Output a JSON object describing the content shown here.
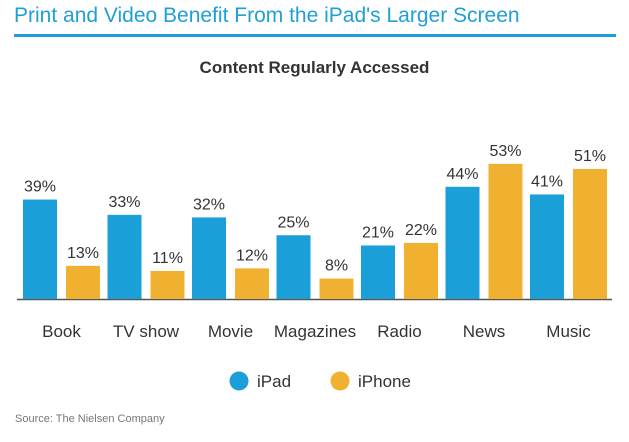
{
  "header": {
    "title": "Print and Video Benefit From the iPad's Larger Screen"
  },
  "footer": {
    "source": "Source: The Nielsen Company"
  },
  "colors": {
    "ipad": "#1a9fd8",
    "iphone": "#f0b030",
    "header": "#1f9fd9",
    "text": "#333333"
  },
  "chart_data": {
    "type": "bar",
    "title": "Content Regularly Accessed",
    "xlabel": "",
    "ylabel": "",
    "ylim": [
      0,
      60
    ],
    "grid": false,
    "legend_position": "bottom-center",
    "categories": [
      "Book",
      "TV show",
      "Movie",
      "Magazines",
      "Radio",
      "News",
      "Music"
    ],
    "series": [
      {
        "name": "iPad",
        "color": "#1a9fd8",
        "values": [
          39,
          33,
          32,
          25,
          21,
          44,
          41
        ],
        "labels": [
          "39%",
          "33%",
          "32%",
          "25%",
          "21%",
          "44%",
          "41%"
        ]
      },
      {
        "name": "iPhone",
        "color": "#f0b030",
        "values": [
          13,
          11,
          12,
          8,
          22,
          53,
          51
        ],
        "labels": [
          "13%",
          "11%",
          "12%",
          "8%",
          "22%",
          "53%",
          "51%"
        ]
      }
    ]
  }
}
